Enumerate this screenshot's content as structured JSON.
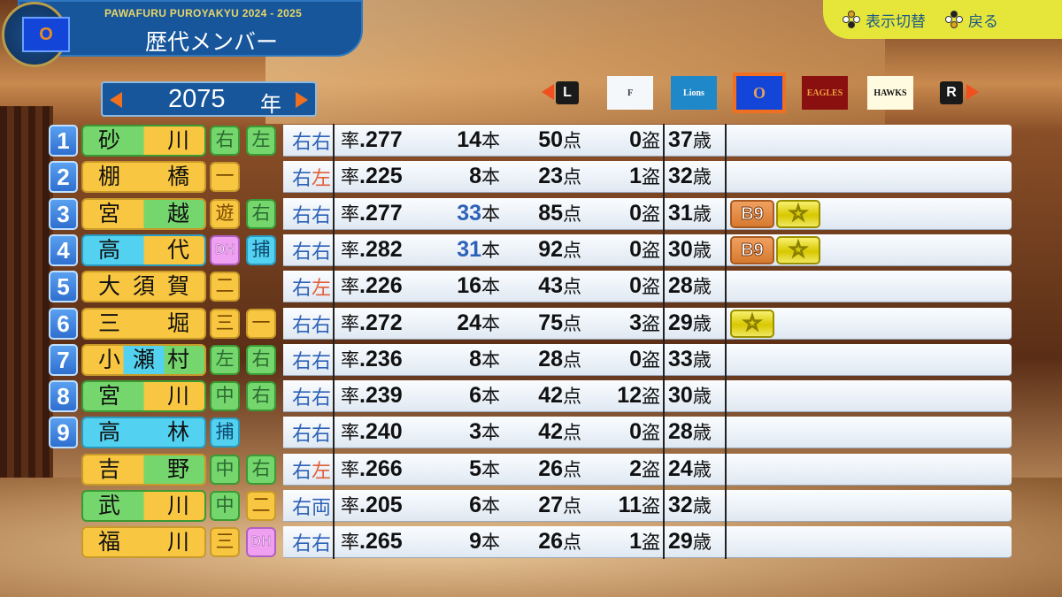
{
  "header": {
    "subtitle": "PAWAFURU PUROYAKYU 2024 - 2025",
    "title": "歴代メンバー",
    "emblem_logo": "O"
  },
  "help": [
    {
      "label": "表示切替",
      "icon": "controller-button-top-icon"
    },
    {
      "label": "戻る",
      "icon": "controller-button-bottom-icon"
    }
  ],
  "year": {
    "value": "2075",
    "unit": "年"
  },
  "teams": {
    "left_key": "L",
    "right_key": "R",
    "logos": [
      {
        "name": "FIGHTERS",
        "label": "F",
        "bg": "#f4f8fb",
        "fg": "#334"
      },
      {
        "name": "Lions",
        "label": "Lions",
        "bg": "#1e88c8",
        "fg": "#fff"
      },
      {
        "name": "O",
        "label": "O",
        "bg": "#1346d8",
        "fg": "#e0a060",
        "selected": true
      },
      {
        "name": "EAGLES",
        "label": "EAGLES",
        "bg": "#8a1010",
        "fg": "#f0a040"
      },
      {
        "name": "HAWKS",
        "label": "HAWKS",
        "bg": "#fffbe0",
        "fg": "#111"
      }
    ]
  },
  "colors": {
    "green": "#74d66c",
    "yellow": "#f8c640",
    "cyan": "#52d2f0",
    "pink": "#f0a0f0",
    "orange": "#f07020",
    "hand_blue": "#2d62b8",
    "hand_red": "#e0603a",
    "hr_blue": "#2d62b8"
  },
  "players": [
    {
      "order": "1",
      "name": "砂　川",
      "name_colors": [
        "green",
        "yellow"
      ],
      "pos": [
        "右",
        "左"
      ],
      "hand": [
        "右",
        "右"
      ],
      "avg_label": "率",
      "avg": ".277",
      "hr": "14",
      "hr_unit": "本",
      "rbi": "50",
      "rbi_unit": "点",
      "sb": "0",
      "sb_unit": "盗",
      "age": "37",
      "age_unit": "歳",
      "badges": []
    },
    {
      "order": "2",
      "name": "棚　橋",
      "name_colors": [
        "yellow",
        "yellow"
      ],
      "pos": [
        "一"
      ],
      "hand": [
        "右",
        "左"
      ],
      "avg_label": "率",
      "avg": ".225",
      "hr": "8",
      "hr_unit": "本",
      "rbi": "23",
      "rbi_unit": "点",
      "sb": "1",
      "sb_unit": "盗",
      "age": "32",
      "age_unit": "歳",
      "badges": []
    },
    {
      "order": "3",
      "name": "宮　越",
      "name_colors": [
        "yellow",
        "green"
      ],
      "pos": [
        "遊",
        "右"
      ],
      "hand": [
        "右",
        "右"
      ],
      "avg_label": "率",
      "avg": ".277",
      "hr": "33",
      "hr_unit": "本",
      "hr_highlight": true,
      "rbi": "85",
      "rbi_unit": "点",
      "sb": "0",
      "sb_unit": "盗",
      "age": "31",
      "age_unit": "歳",
      "badges": [
        "B9",
        "☆"
      ]
    },
    {
      "order": "4",
      "name": "高　代",
      "name_colors": [
        "cyan",
        "yellow"
      ],
      "pos": [
        "DH",
        "捕"
      ],
      "hand": [
        "右",
        "右"
      ],
      "avg_label": "率",
      "avg": ".282",
      "hr": "31",
      "hr_unit": "本",
      "hr_highlight": true,
      "rbi": "92",
      "rbi_unit": "点",
      "sb": "0",
      "sb_unit": "盗",
      "age": "30",
      "age_unit": "歳",
      "badges": [
        "B9",
        "☆"
      ]
    },
    {
      "order": "5",
      "name": "大須賀",
      "name_colors": [
        "yellow",
        "yellow"
      ],
      "pos": [
        "二"
      ],
      "hand": [
        "右",
        "左"
      ],
      "avg_label": "率",
      "avg": ".226",
      "hr": "16",
      "hr_unit": "本",
      "rbi": "43",
      "rbi_unit": "点",
      "sb": "0",
      "sb_unit": "盗",
      "age": "28",
      "age_unit": "歳",
      "badges": []
    },
    {
      "order": "6",
      "name": "三　堀",
      "name_colors": [
        "yellow",
        "yellow"
      ],
      "pos": [
        "三",
        "一"
      ],
      "hand": [
        "右",
        "右"
      ],
      "avg_label": "率",
      "avg": ".272",
      "hr": "24",
      "hr_unit": "本",
      "rbi": "75",
      "rbi_unit": "点",
      "sb": "3",
      "sb_unit": "盗",
      "age": "29",
      "age_unit": "歳",
      "badges": [
        "☆"
      ]
    },
    {
      "order": "7",
      "name": "小瀬村",
      "name_colors": [
        "yellow",
        "cyan",
        "green"
      ],
      "pos": [
        "左",
        "右"
      ],
      "hand": [
        "右",
        "右"
      ],
      "avg_label": "率",
      "avg": ".236",
      "hr": "8",
      "hr_unit": "本",
      "rbi": "28",
      "rbi_unit": "点",
      "sb": "0",
      "sb_unit": "盗",
      "age": "33",
      "age_unit": "歳",
      "badges": []
    },
    {
      "order": "8",
      "name": "宮　川",
      "name_colors": [
        "green",
        "yellow"
      ],
      "pos": [
        "中",
        "右"
      ],
      "hand": [
        "右",
        "右"
      ],
      "avg_label": "率",
      "avg": ".239",
      "hr": "6",
      "hr_unit": "本",
      "rbi": "42",
      "rbi_unit": "点",
      "sb": "12",
      "sb_unit": "盗",
      "age": "30",
      "age_unit": "歳",
      "badges": []
    },
    {
      "order": "9",
      "name": "高　林",
      "name_colors": [
        "cyan",
        "cyan"
      ],
      "pos": [
        "捕"
      ],
      "hand": [
        "右",
        "右"
      ],
      "avg_label": "率",
      "avg": ".240",
      "hr": "3",
      "hr_unit": "本",
      "rbi": "42",
      "rbi_unit": "点",
      "sb": "0",
      "sb_unit": "盗",
      "age": "28",
      "age_unit": "歳",
      "badges": []
    },
    {
      "order": "",
      "name": "吉　野",
      "name_colors": [
        "yellow",
        "green"
      ],
      "pos": [
        "中",
        "右"
      ],
      "hand": [
        "右",
        "左"
      ],
      "avg_label": "率",
      "avg": ".266",
      "hr": "5",
      "hr_unit": "本",
      "rbi": "26",
      "rbi_unit": "点",
      "sb": "2",
      "sb_unit": "盗",
      "age": "24",
      "age_unit": "歳",
      "badges": []
    },
    {
      "order": "",
      "name": "武　川",
      "name_colors": [
        "green",
        "yellow"
      ],
      "pos": [
        "中",
        "二"
      ],
      "hand": [
        "右",
        "両"
      ],
      "avg_label": "率",
      "avg": ".205",
      "hr": "6",
      "hr_unit": "本",
      "rbi": "27",
      "rbi_unit": "点",
      "sb": "11",
      "sb_unit": "盗",
      "age": "32",
      "age_unit": "歳",
      "badges": []
    },
    {
      "order": "",
      "name": "福　川",
      "name_colors": [
        "yellow",
        "yellow"
      ],
      "pos": [
        "三",
        "DH"
      ],
      "hand": [
        "右",
        "右"
      ],
      "avg_label": "率",
      "avg": ".265",
      "hr": "9",
      "hr_unit": "本",
      "rbi": "26",
      "rbi_unit": "点",
      "sb": "1",
      "sb_unit": "盗",
      "age": "29",
      "age_unit": "歳",
      "badges": []
    }
  ]
}
